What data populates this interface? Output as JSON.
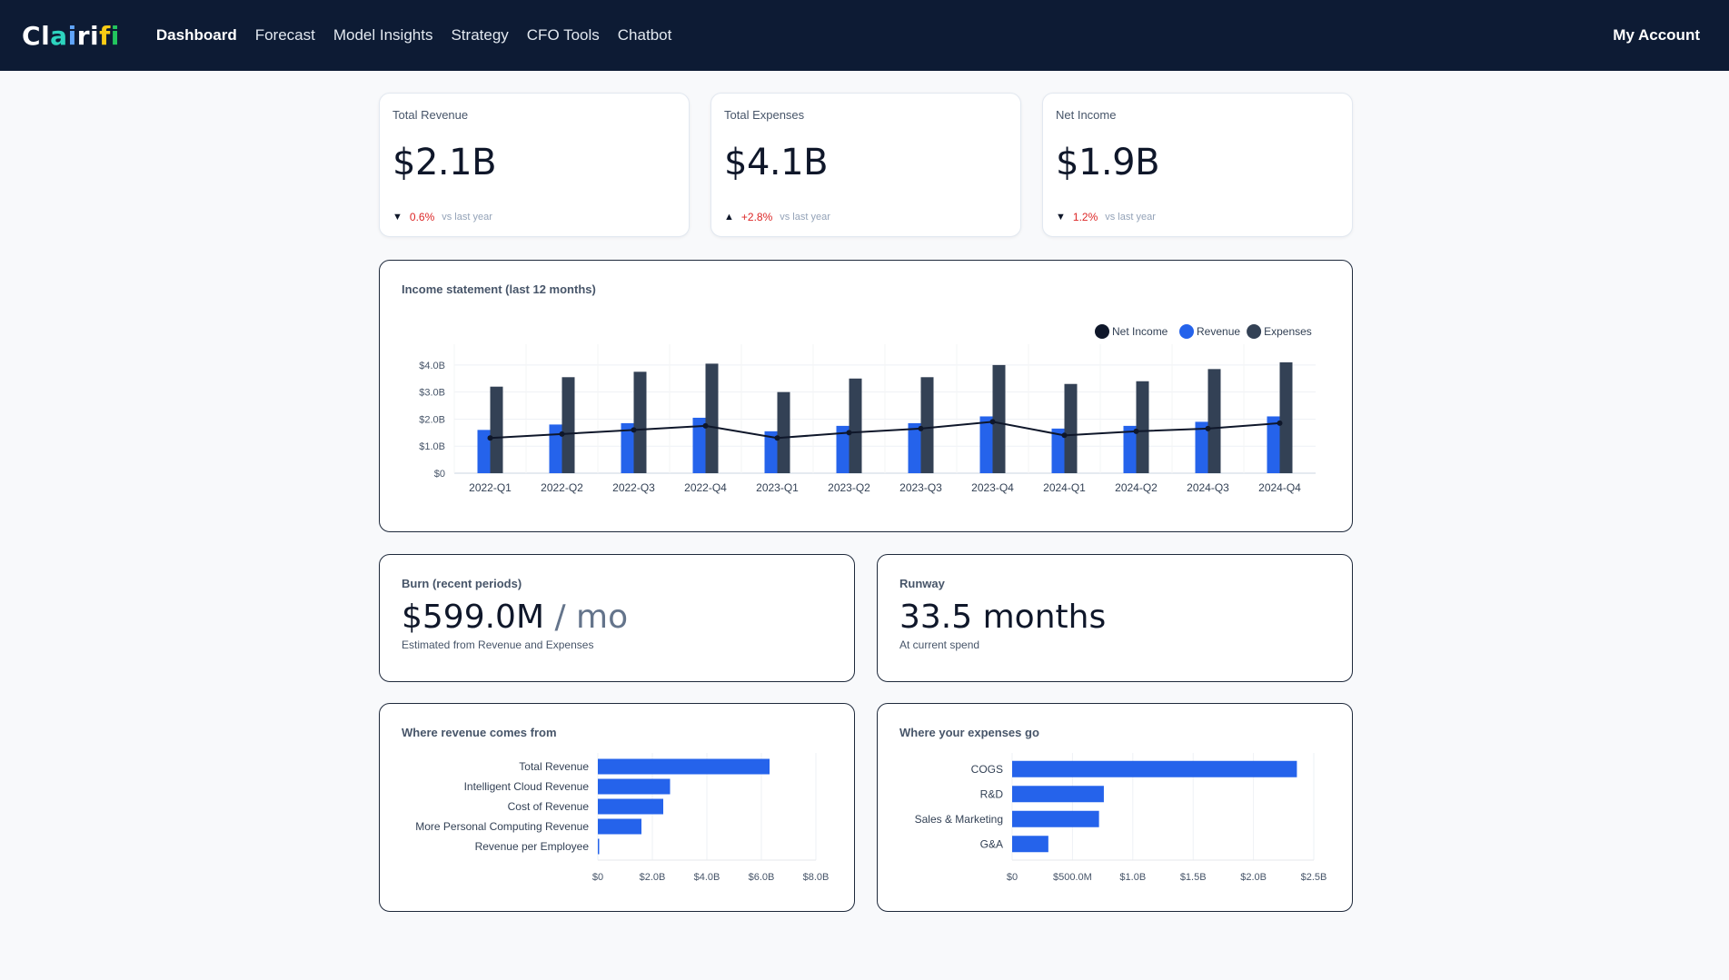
{
  "nav": {
    "logo": [
      "C",
      "l",
      "a",
      "i",
      "r",
      "i",
      "f",
      "i"
    ],
    "logo_colors": [
      "#ffffff",
      "#ffffff",
      "#2dd4bf",
      "#60a5fa",
      "#ffffff",
      "#ffffff",
      "#facc15",
      "#22c55e"
    ],
    "links": [
      "Dashboard",
      "Forecast",
      "Model Insights",
      "Strategy",
      "CFO Tools",
      "Chatbot"
    ],
    "account": "My Account"
  },
  "kpis": [
    {
      "label": "Total Revenue",
      "value": "$2.1B",
      "arrow": "▼",
      "delta": "0.6%",
      "vs": "vs last year"
    },
    {
      "label": "Total Expenses",
      "value": "$4.1B",
      "arrow": "▲",
      "delta": "+2.8%",
      "vs": "vs last year"
    },
    {
      "label": "Net Income",
      "value": "$1.9B",
      "arrow": "▼",
      "delta": "1.2%",
      "vs": "vs last year"
    }
  ],
  "income": {
    "title": "Income statement (last 12 months)"
  },
  "burn": {
    "title": "Burn (recent periods)",
    "value": "$599.0M",
    "unit": " / mo",
    "sub": "Estimated from Revenue and Expenses"
  },
  "runway": {
    "title": "Runway",
    "value": "33.5 months",
    "sub": "At current spend"
  },
  "revenue_sources": {
    "title": "Where revenue comes from"
  },
  "expense_uses": {
    "title": "Where your expenses go"
  },
  "colors": {
    "revenue": "#2563eb",
    "expenses": "#334155",
    "net_income": "#0f172a",
    "nav_bg": "#0d1b34"
  },
  "chart_data": [
    {
      "id": "income",
      "type": "bar",
      "categories": [
        "2022-Q1",
        "2022-Q2",
        "2022-Q3",
        "2022-Q4",
        "2023-Q1",
        "2023-Q2",
        "2023-Q3",
        "2023-Q4",
        "2024-Q1",
        "2024-Q2",
        "2024-Q3",
        "2024-Q4"
      ],
      "series": [
        {
          "name": "Net Income",
          "type": "line",
          "values": [
            1.3,
            1.45,
            1.6,
            1.75,
            1.3,
            1.5,
            1.65,
            1.9,
            1.4,
            1.55,
            1.65,
            1.85
          ]
        },
        {
          "name": "Revenue",
          "type": "bar",
          "values": [
            1.6,
            1.8,
            1.85,
            2.05,
            1.55,
            1.75,
            1.85,
            2.1,
            1.65,
            1.75,
            1.9,
            2.1
          ]
        },
        {
          "name": "Expenses",
          "type": "bar",
          "values": [
            3.2,
            3.55,
            3.75,
            4.05,
            3.0,
            3.5,
            3.55,
            4.0,
            3.3,
            3.4,
            3.85,
            4.1
          ]
        }
      ],
      "ytick_labels": [
        "$0",
        "$1.0B",
        "$2.0B",
        "$3.0B",
        "$4.0B"
      ],
      "yticks": [
        0,
        1,
        2,
        3,
        4
      ],
      "ylim": [
        0,
        4.5
      ],
      "legend": "top-right"
    },
    {
      "id": "revenue_sources",
      "type": "bar",
      "orientation": "horizontal",
      "categories": [
        "Total Revenue",
        "Intelligent Cloud Revenue",
        "Cost of Revenue",
        "More Personal Computing Revenue",
        "Revenue per Employee"
      ],
      "values": [
        6.3,
        2.65,
        2.4,
        1.6,
        0.02
      ],
      "xtick_labels": [
        "$0",
        "$2.0B",
        "$4.0B",
        "$6.0B",
        "$8.0B"
      ],
      "xticks": [
        0,
        2,
        4,
        6,
        8
      ],
      "xlim": [
        0,
        8
      ]
    },
    {
      "id": "expense_uses",
      "type": "bar",
      "orientation": "horizontal",
      "categories": [
        "COGS",
        "R&D",
        "Sales & Marketing",
        "G&A"
      ],
      "values": [
        2.36,
        0.76,
        0.72,
        0.3
      ],
      "xtick_labels": [
        "$0",
        "$500.0M",
        "$1.0B",
        "$1.5B",
        "$2.0B",
        "$2.5B"
      ],
      "xticks": [
        0,
        0.5,
        1,
        1.5,
        2,
        2.5
      ],
      "xlim": [
        0,
        2.5
      ]
    }
  ]
}
